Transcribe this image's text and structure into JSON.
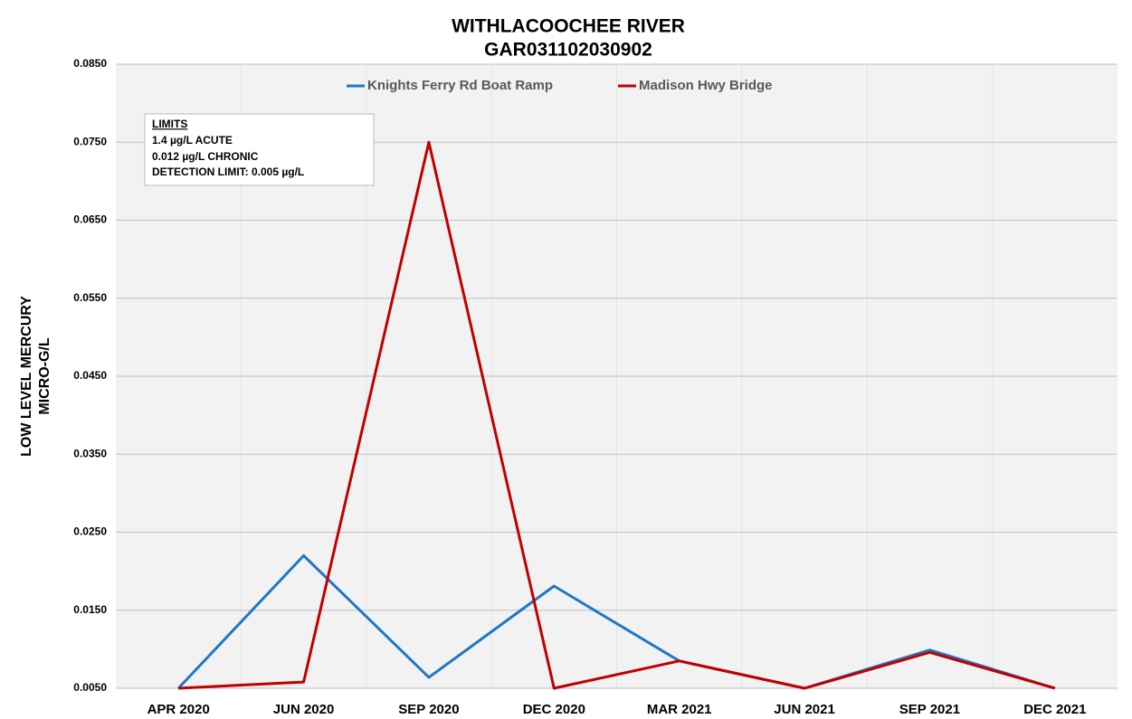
{
  "chart_data": {
    "type": "line",
    "title": "WITHLACOOCHEE RIVER",
    "subtitle": "GAR031102030902",
    "y_label": [
      "LOW LEVEL MERCURY",
      "MICRO-G/L"
    ],
    "categories": [
      "APR 2020",
      "JUN 2020",
      "SEP 2020",
      "DEC 2020",
      "MAR 2021",
      "JUN 2021",
      "SEP 2021",
      "DEC 2021"
    ],
    "series": [
      {
        "name": "Knights Ferry Rd Boat Ramp",
        "color": "#1f77c4",
        "values": [
          0.005,
          0.022,
          0.0064,
          0.0181,
          0.0085,
          0.005,
          0.0099,
          0.005
        ]
      },
      {
        "name": "Madison Hwy Bridge",
        "color": "#c00000",
        "values": [
          0.005,
          0.0058,
          0.075,
          0.005,
          0.0085,
          0.005,
          0.0096,
          0.005
        ]
      }
    ],
    "ylim": [
      0.005,
      0.085
    ],
    "yticks": [
      {
        "value": 0.005,
        "label": "0.0050"
      },
      {
        "value": 0.015,
        "label": "0.0150"
      },
      {
        "value": 0.025,
        "label": "0.0250"
      },
      {
        "value": 0.035,
        "label": "0.0350"
      },
      {
        "value": 0.045,
        "label": "0.0450"
      },
      {
        "value": 0.055,
        "label": "0.0550"
      },
      {
        "value": 0.065,
        "label": "0.0650"
      },
      {
        "value": 0.075,
        "label": "0.0750"
      },
      {
        "value": 0.085,
        "label": "0.0850"
      }
    ],
    "grid": true,
    "legend": "top",
    "annotation": {
      "title": "LIMITS",
      "lines": [
        "1.4 µg/L ACUTE",
        "0.012 µg/L CHRONIC",
        "DETECTION LIMIT: 0.005 µg/L"
      ]
    }
  }
}
